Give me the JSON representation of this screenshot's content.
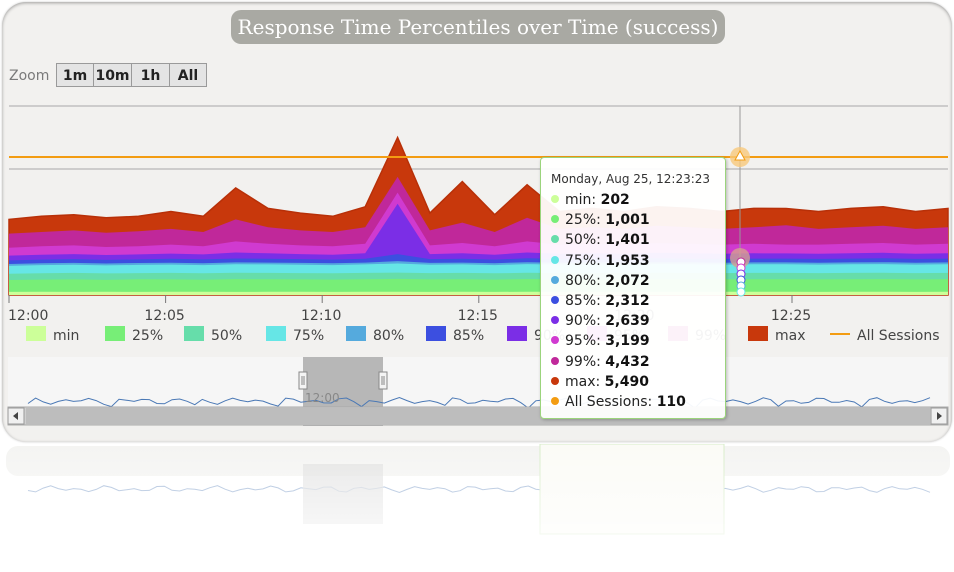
{
  "title": "Response Time Percentiles over Time (success)",
  "zoom": {
    "label": "Zoom",
    "buttons": [
      "1m",
      "10m",
      "1h",
      "All"
    ]
  },
  "colors": {
    "background": "#f2f1ef",
    "title_bg": "#a9a9a3",
    "all_sessions": "#f39c12",
    "navigator_line": "#4a78b5",
    "tooltip_border": "#9bd47c"
  },
  "chart_data": {
    "type": "area",
    "title": "Response Time Percentiles over Time (success)",
    "x_ticks": [
      "12:00",
      "12:05",
      "12:10",
      "12:15",
      "12:20",
      "12:25"
    ],
    "x_range": [
      "12:00",
      "12:29"
    ],
    "y_range": [
      0,
      12000
    ],
    "grid": true,
    "legend": "bottom",
    "series": [
      {
        "name": "min",
        "color": "#ccff99",
        "values": [
          200,
          210,
          200,
          205,
          200,
          210,
          205,
          200,
          205,
          210,
          200,
          205,
          210,
          200,
          205,
          200,
          210,
          205,
          200,
          205,
          210,
          200,
          205,
          210,
          202,
          200,
          205,
          210,
          200,
          205
        ]
      },
      {
        "name": "25%",
        "color": "#77ee77",
        "values": [
          950,
          980,
          990,
          960,
          1000,
          990,
          970,
          1010,
          1000,
          990,
          980,
          1000,
          1020,
          990,
          1000,
          980,
          1010,
          990,
          1000,
          990,
          1010,
          1000,
          990,
          1000,
          1001,
          990,
          1000,
          1010,
          990,
          1000
        ]
      },
      {
        "name": "50%",
        "color": "#66ddaa",
        "values": [
          1350,
          1380,
          1400,
          1370,
          1390,
          1400,
          1380,
          1410,
          1400,
          1390,
          1380,
          1400,
          1420,
          1390,
          1400,
          1380,
          1410,
          1390,
          1400,
          1390,
          1410,
          1400,
          1390,
          1400,
          1401,
          1390,
          1400,
          1410,
          1390,
          1400
        ]
      },
      {
        "name": "75%",
        "color": "#66e6e6",
        "values": [
          1850,
          1900,
          1920,
          1880,
          1910,
          1930,
          1900,
          1950,
          1940,
          1920,
          1900,
          1940,
          2000,
          1920,
          1940,
          1900,
          1960,
          1930,
          1950,
          1930,
          1960,
          1950,
          1930,
          1950,
          1953,
          1930,
          1950,
          1960,
          1930,
          1950
        ]
      },
      {
        "name": "80%",
        "color": "#55aadd",
        "values": [
          1970,
          2020,
          2040,
          2000,
          2030,
          2050,
          2020,
          2070,
          2060,
          2040,
          2020,
          2060,
          2150,
          2040,
          2060,
          2020,
          2080,
          2050,
          2070,
          2050,
          2080,
          2070,
          2050,
          2070,
          2072,
          2050,
          2070,
          2080,
          2050,
          2070
        ]
      },
      {
        "name": "85%",
        "color": "#3c4fe0",
        "values": [
          2200,
          2250,
          2280,
          2230,
          2260,
          2300,
          2260,
          2320,
          2300,
          2280,
          2250,
          2300,
          2600,
          2280,
          2300,
          2250,
          2330,
          2290,
          2310,
          2290,
          2330,
          2310,
          2290,
          2310,
          2312,
          2290,
          2310,
          2330,
          2290,
          2310
        ]
      },
      {
        "name": "90%",
        "color": "#7b2ee6",
        "values": [
          2500,
          2560,
          2600,
          2540,
          2580,
          2630,
          2580,
          2700,
          2650,
          2600,
          2560,
          2650,
          5800,
          2600,
          2650,
          2560,
          2700,
          2620,
          2650,
          2620,
          2680,
          2650,
          2620,
          2650,
          2639,
          2620,
          2650,
          2680,
          2620,
          2650
        ]
      },
      {
        "name": "95%",
        "color": "#d03ad0",
        "values": [
          3000,
          3100,
          3150,
          3050,
          3100,
          3200,
          3100,
          3400,
          3250,
          3150,
          3100,
          3250,
          6500,
          3150,
          3300,
          3100,
          3400,
          3200,
          3250,
          3200,
          3300,
          3250,
          3200,
          3250,
          3199,
          3200,
          3250,
          3300,
          3200,
          3250
        ]
      },
      {
        "name": "99%",
        "color": "#c0289a",
        "values": [
          3900,
          4000,
          4100,
          3950,
          4050,
          4200,
          4000,
          4800,
          4300,
          4100,
          4000,
          4300,
          7500,
          4100,
          4600,
          4000,
          4900,
          4200,
          4300,
          4200,
          4400,
          4300,
          4200,
          4300,
          4432,
          4200,
          4300,
          4400,
          4200,
          4300
        ]
      },
      {
        "name": "max",
        "color": "#c8380c",
        "values": [
          4800,
          5000,
          5100,
          4900,
          5000,
          5300,
          5000,
          6800,
          5500,
          5200,
          5000,
          5600,
          10000,
          5200,
          7200,
          5100,
          7000,
          5300,
          5500,
          5300,
          5600,
          5500,
          5300,
          5500,
          5490,
          5300,
          5500,
          5600,
          5300,
          5500
        ]
      },
      {
        "name": "All Sessions",
        "color": "#f39c12",
        "type": "line",
        "values": [
          110,
          110,
          110,
          110,
          110,
          110,
          110,
          110,
          110,
          110,
          110,
          110,
          110,
          110,
          110,
          110,
          110,
          110,
          110,
          110,
          110,
          110,
          110,
          110,
          110,
          110,
          110,
          110,
          110,
          110
        ]
      }
    ]
  },
  "tooltip": {
    "date": "Monday, Aug 25, 12:23:23",
    "rows": [
      {
        "label": "min:",
        "value": "202",
        "color": "#ccff99"
      },
      {
        "label": "25%:",
        "value": "1,001",
        "color": "#77ee77"
      },
      {
        "label": "50%:",
        "value": "1,401",
        "color": "#66ddaa"
      },
      {
        "label": "75%:",
        "value": "1,953",
        "color": "#66e6e6"
      },
      {
        "label": "80%:",
        "value": "2,072",
        "color": "#55aadd"
      },
      {
        "label": "85%:",
        "value": "2,312",
        "color": "#3c4fe0"
      },
      {
        "label": "90%:",
        "value": "2,639",
        "color": "#7b2ee6"
      },
      {
        "label": "95%:",
        "value": "3,199",
        "color": "#d03ad0"
      },
      {
        "label": "99%:",
        "value": "4,432",
        "color": "#c0289a"
      },
      {
        "label": "max:",
        "value": "5,490",
        "color": "#c8380c"
      },
      {
        "label": "All Sessions:",
        "value": "110",
        "color": "#f39c12"
      }
    ]
  },
  "navigator": {
    "tick": "12:00"
  }
}
